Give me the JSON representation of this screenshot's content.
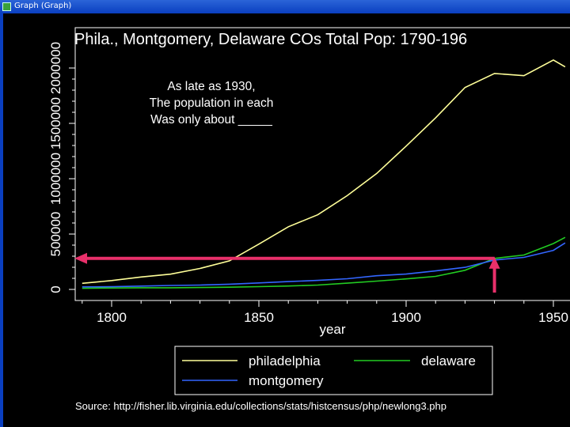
{
  "window": {
    "title": "Graph (Graph)"
  },
  "colors": {
    "background": "#000000",
    "philadelphia": "#ffff99",
    "delaware": "#22cc22",
    "montgomery": "#3366ff",
    "arrow": "#e8306a",
    "text": "#ffffff"
  },
  "chart_data": {
    "type": "line",
    "title": "Phila., Montgomery, Delaware COs Total Pop: 1790-196",
    "xlabel": "year",
    "ylabel": "",
    "xlim": [
      1790,
      1954
    ],
    "ylim": [
      0,
      2200000
    ],
    "x_ticks": [
      1800,
      1850,
      1900,
      1950
    ],
    "y_ticks": [
      0,
      500000,
      1000000,
      1500000,
      2000000
    ],
    "x": [
      1790,
      1800,
      1810,
      1820,
      1830,
      1840,
      1850,
      1860,
      1870,
      1880,
      1890,
      1900,
      1910,
      1920,
      1930,
      1940,
      1950,
      1954
    ],
    "series": [
      {
        "name": "philadelphia",
        "color": "#ffff99",
        "values": [
          55000,
          80000,
          112000,
          138000,
          189000,
          258000,
          409000,
          566000,
          674000,
          847000,
          1047000,
          1294000,
          1549000,
          1824000,
          1951000,
          1931000,
          2072000,
          2010000
        ]
      },
      {
        "name": "delaware",
        "color": "#22cc22",
        "values": [
          10000,
          12800,
          14700,
          14800,
          17300,
          19800,
          24700,
          30600,
          39400,
          56100,
          74700,
          94800,
          117900,
          173100,
          280300,
          310600,
          414200,
          470000
        ]
      },
      {
        "name": "montgomery",
        "color": "#3366ff",
        "values": [
          22900,
          24200,
          29700,
          35800,
          39400,
          47200,
          58300,
          70500,
          81600,
          96500,
          123300,
          138900,
          166800,
          199300,
          265800,
          289200,
          353100,
          420000
        ]
      }
    ],
    "legend": {
      "position": "bottom",
      "entries": [
        {
          "label": "philadelphia",
          "color": "#ffff99"
        },
        {
          "label": "delaware",
          "color": "#22cc22"
        },
        {
          "label": "montgomery",
          "color": "#3366ff"
        }
      ]
    },
    "annotation": {
      "lines": [
        "As late as 1930,",
        "The population in each",
        "Was only about _____"
      ],
      "arrow_year": 1930,
      "arrow_value": 280000
    },
    "source": "Source: http://fisher.lib.virginia.edu/collections/stats/histcensus/php/newlong3.php",
    "grid": false
  }
}
